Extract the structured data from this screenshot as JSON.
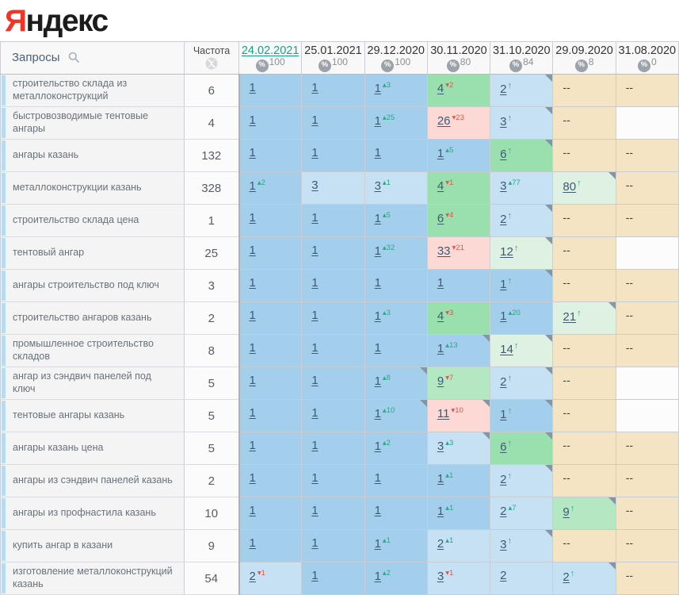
{
  "logo": {
    "ya": "Я",
    "rest": "ндекс"
  },
  "header": {
    "queries_label": "Запросы",
    "frequency_label": "Частота",
    "icons": {
      "search": "search-icon",
      "frequency": "wordstat-globe-icon",
      "coverage": "percent-icon"
    },
    "dates": [
      {
        "label": "24.02.2021",
        "coverage": "100",
        "selected": true
      },
      {
        "label": "25.01.2021",
        "coverage": "100",
        "selected": false
      },
      {
        "label": "29.12.2020",
        "coverage": "100",
        "selected": false
      },
      {
        "label": "30.11.2020",
        "coverage": "80",
        "selected": false
      },
      {
        "label": "31.10.2020",
        "coverage": "84",
        "selected": false
      },
      {
        "label": "29.09.2020",
        "coverage": "8",
        "selected": false
      },
      {
        "label": "31.08.2020",
        "coverage": "0",
        "selected": false
      }
    ]
  },
  "colors": {
    "logo_accent": "#f23424",
    "selected_date": "#18a283",
    "positive_change": "#2aa788",
    "negative_change": "#e0564a",
    "cell": {
      "blue": "#a3cfec",
      "blueL": "#c6e0f4",
      "green": "#9adfae",
      "greenSoft": "#b4e8c2",
      "greenPale": "#def1e2",
      "pink": "#fcd9d5",
      "beige": "#f4e4c3",
      "white": "#fcfcfc"
    }
  },
  "glyphs": {
    "up": "▴",
    "down": "▾",
    "arrow": "↑",
    "dash": "--"
  },
  "rows": [
    {
      "query": "строительство склада из металлоконструкций",
      "frequency": "6",
      "cells": [
        {
          "v": "1",
          "bg": "blue"
        },
        {
          "v": "1",
          "bg": "blue"
        },
        {
          "v": "1",
          "sup": "3",
          "dir": "up",
          "bg": "blue"
        },
        {
          "v": "4",
          "sup": "2",
          "dir": "down",
          "bg": "green"
        },
        {
          "v": "2",
          "arrow": true,
          "bg": "blueL",
          "corner": true
        },
        {
          "v": "--",
          "bg": "beige"
        },
        {
          "v": "--",
          "bg": "beige"
        }
      ]
    },
    {
      "query": "быстровозводимые тентовые ангары",
      "frequency": "4",
      "cells": [
        {
          "v": "1",
          "bg": "blue"
        },
        {
          "v": "1",
          "bg": "blue"
        },
        {
          "v": "1",
          "sup": "25",
          "dir": "up",
          "bg": "blue"
        },
        {
          "v": "26",
          "sup": "23",
          "dir": "down",
          "bg": "pink"
        },
        {
          "v": "3",
          "arrow": true,
          "bg": "blueL",
          "corner": true
        },
        {
          "v": "--",
          "bg": "beige"
        },
        {
          "v": "",
          "bg": "white"
        }
      ]
    },
    {
      "query": "ангары казань",
      "frequency": "132",
      "cells": [
        {
          "v": "1",
          "bg": "blue"
        },
        {
          "v": "1",
          "bg": "blue"
        },
        {
          "v": "1",
          "bg": "blue"
        },
        {
          "v": "1",
          "sup": "5",
          "dir": "up",
          "bg": "blue"
        },
        {
          "v": "6",
          "arrow": true,
          "bg": "green",
          "corner": true
        },
        {
          "v": "--",
          "bg": "beige"
        },
        {
          "v": "--",
          "bg": "beige"
        }
      ]
    },
    {
      "query": "металлоконструкции казань",
      "frequency": "328",
      "cells": [
        {
          "v": "1",
          "sup": "2",
          "dir": "up",
          "bg": "blue"
        },
        {
          "v": "3",
          "bg": "blueL"
        },
        {
          "v": "3",
          "sup": "1",
          "dir": "up",
          "bg": "blueL"
        },
        {
          "v": "4",
          "sup": "1",
          "dir": "down",
          "bg": "green"
        },
        {
          "v": "3",
          "sup": "77",
          "dir": "up",
          "bg": "blueL"
        },
        {
          "v": "80",
          "arrow": true,
          "bg": "greenPale",
          "corner": true
        },
        {
          "v": "--",
          "bg": "beige"
        }
      ]
    },
    {
      "query": "строительство склада цена",
      "frequency": "1",
      "cells": [
        {
          "v": "1",
          "bg": "blue"
        },
        {
          "v": "1",
          "bg": "blue"
        },
        {
          "v": "1",
          "sup": "5",
          "dir": "up",
          "bg": "blue"
        },
        {
          "v": "6",
          "sup": "4",
          "dir": "down",
          "bg": "green"
        },
        {
          "v": "2",
          "arrow": true,
          "bg": "blueL",
          "corner": true
        },
        {
          "v": "--",
          "bg": "beige"
        },
        {
          "v": "--",
          "bg": "beige"
        }
      ]
    },
    {
      "query": "тентовый ангар",
      "frequency": "25",
      "cells": [
        {
          "v": "1",
          "bg": "blue"
        },
        {
          "v": "1",
          "bg": "blue"
        },
        {
          "v": "1",
          "sup": "32",
          "dir": "up",
          "bg": "blue"
        },
        {
          "v": "33",
          "sup": "21",
          "dir": "down",
          "bg": "pink"
        },
        {
          "v": "12",
          "arrow": true,
          "bg": "greenPale",
          "corner": true
        },
        {
          "v": "--",
          "bg": "beige"
        },
        {
          "v": "",
          "bg": "white"
        }
      ]
    },
    {
      "query": "ангары строительство под ключ",
      "frequency": "3",
      "cells": [
        {
          "v": "1",
          "bg": "blue"
        },
        {
          "v": "1",
          "bg": "blue"
        },
        {
          "v": "1",
          "bg": "blue"
        },
        {
          "v": "1",
          "bg": "blue"
        },
        {
          "v": "1",
          "arrow": true,
          "bg": "blue",
          "corner": true
        },
        {
          "v": "--",
          "bg": "beige"
        },
        {
          "v": "--",
          "bg": "beige"
        }
      ]
    },
    {
      "query": "строительство ангаров казань",
      "frequency": "2",
      "cells": [
        {
          "v": "1",
          "bg": "blue"
        },
        {
          "v": "1",
          "bg": "blue"
        },
        {
          "v": "1",
          "sup": "3",
          "dir": "up",
          "bg": "blue"
        },
        {
          "v": "4",
          "sup": "3",
          "dir": "down",
          "bg": "green"
        },
        {
          "v": "1",
          "sup": "20",
          "dir": "up",
          "bg": "blue"
        },
        {
          "v": "21",
          "arrow": true,
          "bg": "greenPale",
          "corner": true
        },
        {
          "v": "--",
          "bg": "beige"
        }
      ]
    },
    {
      "query": "промышленное строительство складов",
      "frequency": "8",
      "cells": [
        {
          "v": "1",
          "bg": "blue"
        },
        {
          "v": "1",
          "bg": "blue"
        },
        {
          "v": "1",
          "bg": "blue"
        },
        {
          "v": "1",
          "sup": "13",
          "dir": "up",
          "bg": "blue",
          "corner": true
        },
        {
          "v": "14",
          "arrow": true,
          "bg": "greenPale",
          "corner": true
        },
        {
          "v": "--",
          "bg": "beige"
        },
        {
          "v": "--",
          "bg": "beige"
        }
      ]
    },
    {
      "query": "ангар из сэндвич панелей под ключ",
      "frequency": "5",
      "cells": [
        {
          "v": "1",
          "bg": "blue"
        },
        {
          "v": "1",
          "bg": "blue"
        },
        {
          "v": "1",
          "sup": "8",
          "dir": "up",
          "bg": "blue",
          "corner": true
        },
        {
          "v": "9",
          "sup": "7",
          "dir": "down",
          "bg": "greenSoft"
        },
        {
          "v": "2",
          "arrow": true,
          "bg": "blueL",
          "corner": true
        },
        {
          "v": "--",
          "bg": "beige"
        },
        {
          "v": "",
          "bg": "white"
        }
      ]
    },
    {
      "query": "тентовые ангары казань",
      "frequency": "5",
      "cells": [
        {
          "v": "1",
          "bg": "blue"
        },
        {
          "v": "1",
          "bg": "blue"
        },
        {
          "v": "1",
          "sup": "10",
          "dir": "up",
          "bg": "blue",
          "corner": true
        },
        {
          "v": "11",
          "sup": "10",
          "dir": "down",
          "bg": "pink",
          "corner": true
        },
        {
          "v": "1",
          "arrow": true,
          "bg": "blue",
          "corner": true
        },
        {
          "v": "--",
          "bg": "beige"
        },
        {
          "v": "",
          "bg": "white"
        }
      ]
    },
    {
      "query": "ангары казань цена",
      "frequency": "5",
      "cells": [
        {
          "v": "1",
          "bg": "blue"
        },
        {
          "v": "1",
          "bg": "blue"
        },
        {
          "v": "1",
          "sup": "2",
          "dir": "up",
          "bg": "blue"
        },
        {
          "v": "3",
          "sup": "3",
          "dir": "up",
          "bg": "blueL",
          "corner": true
        },
        {
          "v": "6",
          "arrow": true,
          "bg": "green",
          "corner": true
        },
        {
          "v": "--",
          "bg": "beige"
        },
        {
          "v": "--",
          "bg": "beige"
        }
      ]
    },
    {
      "query": "ангары из сэндвич панелей казань",
      "frequency": "2",
      "cells": [
        {
          "v": "1",
          "bg": "blue"
        },
        {
          "v": "1",
          "bg": "blue"
        },
        {
          "v": "1",
          "bg": "blue"
        },
        {
          "v": "1",
          "sup": "1",
          "dir": "up",
          "bg": "blue"
        },
        {
          "v": "2",
          "arrow": true,
          "bg": "blueL",
          "corner": true
        },
        {
          "v": "--",
          "bg": "beige"
        },
        {
          "v": "--",
          "bg": "beige"
        }
      ]
    },
    {
      "query": "ангары из профнастила казань",
      "frequency": "10",
      "cells": [
        {
          "v": "1",
          "bg": "blue"
        },
        {
          "v": "1",
          "bg": "blue"
        },
        {
          "v": "1",
          "bg": "blue"
        },
        {
          "v": "1",
          "sup": "1",
          "dir": "up",
          "bg": "blue"
        },
        {
          "v": "2",
          "sup": "7",
          "dir": "up",
          "bg": "blueL"
        },
        {
          "v": "9",
          "arrow": true,
          "bg": "greenSoft",
          "corner": true
        },
        {
          "v": "--",
          "bg": "beige"
        }
      ]
    },
    {
      "query": "купить ангар в казани",
      "frequency": "9",
      "cells": [
        {
          "v": "1",
          "bg": "blue"
        },
        {
          "v": "1",
          "bg": "blue"
        },
        {
          "v": "1",
          "sup": "1",
          "dir": "up",
          "bg": "blue"
        },
        {
          "v": "2",
          "sup": "1",
          "dir": "up",
          "bg": "blueL"
        },
        {
          "v": "3",
          "arrow": true,
          "bg": "blueL",
          "corner": true
        },
        {
          "v": "--",
          "bg": "beige"
        },
        {
          "v": "--",
          "bg": "beige"
        }
      ]
    },
    {
      "query": "изготовление металлоконструкций казань",
      "frequency": "54",
      "cells": [
        {
          "v": "2",
          "sup": "1",
          "dir": "down",
          "bg": "blueL"
        },
        {
          "v": "1",
          "bg": "blue"
        },
        {
          "v": "1",
          "sup": "2",
          "dir": "up",
          "bg": "blue"
        },
        {
          "v": "3",
          "sup": "1",
          "dir": "down",
          "bg": "blueL"
        },
        {
          "v": "2",
          "bg": "blueL"
        },
        {
          "v": "2",
          "arrow": true,
          "bg": "blueL",
          "corner": true
        },
        {
          "v": "--",
          "bg": "beige"
        }
      ]
    }
  ]
}
